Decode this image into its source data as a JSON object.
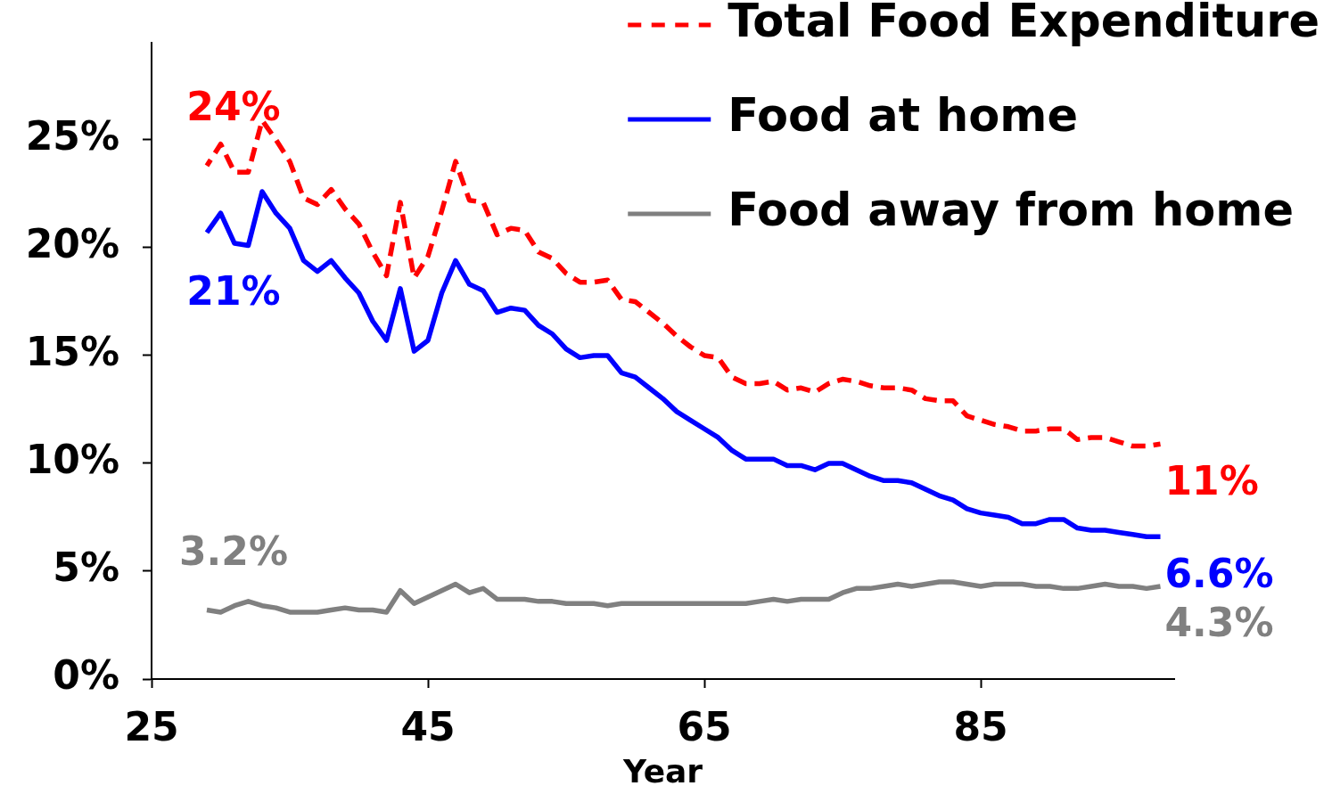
{
  "chart_data": {
    "type": "line",
    "xlabel": "Year",
    "x": [
      29,
      30,
      31,
      32,
      33,
      34,
      35,
      36,
      37,
      38,
      39,
      40,
      41,
      42,
      43,
      44,
      45,
      46,
      47,
      48,
      49,
      50,
      51,
      52,
      53,
      54,
      55,
      56,
      57,
      58,
      59,
      60,
      61,
      62,
      63,
      64,
      65,
      66,
      67,
      68,
      69,
      70,
      71,
      72,
      73,
      74,
      75,
      76,
      77,
      78,
      79,
      80,
      81,
      82,
      83,
      84,
      85,
      86,
      87,
      88,
      89,
      90,
      91,
      92,
      93,
      94,
      95,
      96,
      97,
      98
    ],
    "series": [
      {
        "name": "Total Food Expenditure",
        "color": "#ff0000",
        "line_style": "dashed",
        "values": [
          23.8,
          24.8,
          23.5,
          23.5,
          25.9,
          25.0,
          24.0,
          22.3,
          22.0,
          22.7,
          21.8,
          21.1,
          19.8,
          18.7,
          22.1,
          18.6,
          19.6,
          21.7,
          24.0,
          22.2,
          22.1,
          20.6,
          20.9,
          20.8,
          19.8,
          19.5,
          18.8,
          18.4,
          18.4,
          18.5,
          17.6,
          17.5,
          17.0,
          16.5,
          15.9,
          15.4,
          15.0,
          14.9,
          14.0,
          13.7,
          13.7,
          13.8,
          13.4,
          13.5,
          13.3,
          13.7,
          13.9,
          13.8,
          13.6,
          13.5,
          13.5,
          13.4,
          13.0,
          12.9,
          12.9,
          12.2,
          12.0,
          11.8,
          11.7,
          11.5,
          11.5,
          11.6,
          11.6,
          11.1,
          11.2,
          11.2,
          11.0,
          10.8,
          10.8,
          10.9
        ],
        "value_labels": [
          "24%",
          null,
          null,
          null,
          null,
          null,
          null,
          null,
          null,
          null,
          null,
          null,
          null,
          null,
          null,
          null,
          null,
          null,
          null,
          null,
          null,
          null,
          null,
          null,
          null,
          null,
          null,
          null,
          null,
          null,
          null,
          null,
          null,
          null,
          null,
          null,
          null,
          null,
          null,
          null,
          null,
          null,
          null,
          null,
          null,
          null,
          null,
          null,
          null,
          null,
          null,
          null,
          null,
          null,
          null,
          null,
          null,
          null,
          null,
          null,
          null,
          null,
          null,
          null,
          null,
          null,
          null,
          null,
          null,
          "11%"
        ]
      },
      {
        "name": "Food at home",
        "color": "#0000ff",
        "line_style": "solid",
        "values": [
          20.7,
          21.6,
          20.2,
          20.1,
          22.6,
          21.6,
          20.9,
          19.4,
          18.9,
          19.4,
          18.6,
          17.9,
          16.6,
          15.7,
          18.1,
          15.2,
          15.7,
          17.9,
          19.4,
          18.3,
          18.0,
          17.0,
          17.2,
          17.1,
          16.4,
          16.0,
          15.3,
          14.9,
          15.0,
          15.0,
          14.2,
          14.0,
          13.5,
          13.0,
          12.4,
          12.0,
          11.6,
          11.2,
          10.6,
          10.2,
          10.2,
          10.2,
          9.9,
          9.9,
          9.7,
          10.0,
          10.0,
          9.7,
          9.4,
          9.2,
          9.2,
          9.1,
          8.8,
          8.5,
          8.3,
          7.9,
          7.7,
          7.6,
          7.5,
          7.2,
          7.2,
          7.4,
          7.4,
          7.0,
          6.9,
          6.9,
          6.8,
          6.7,
          6.6,
          6.6
        ],
        "value_labels": [
          "21%",
          null,
          null,
          null,
          null,
          null,
          null,
          null,
          null,
          null,
          null,
          null,
          null,
          null,
          null,
          null,
          null,
          null,
          null,
          null,
          null,
          null,
          null,
          null,
          null,
          null,
          null,
          null,
          null,
          null,
          null,
          null,
          null,
          null,
          null,
          null,
          null,
          null,
          null,
          null,
          null,
          null,
          null,
          null,
          null,
          null,
          null,
          null,
          null,
          null,
          null,
          null,
          null,
          null,
          null,
          null,
          null,
          null,
          null,
          null,
          null,
          null,
          null,
          null,
          null,
          null,
          null,
          null,
          null,
          "6.6%"
        ]
      },
      {
        "name": "Food away from home",
        "color": "#808080",
        "line_style": "solid",
        "values": [
          3.2,
          3.1,
          3.4,
          3.6,
          3.4,
          3.3,
          3.1,
          3.1,
          3.1,
          3.2,
          3.3,
          3.2,
          3.2,
          3.1,
          4.1,
          3.5,
          3.8,
          4.1,
          4.4,
          4.0,
          4.2,
          3.7,
          3.7,
          3.7,
          3.6,
          3.6,
          3.5,
          3.5,
          3.5,
          3.4,
          3.5,
          3.5,
          3.5,
          3.5,
          3.5,
          3.5,
          3.5,
          3.5,
          3.5,
          3.5,
          3.6,
          3.7,
          3.6,
          3.7,
          3.7,
          3.7,
          4.0,
          4.2,
          4.2,
          4.3,
          4.4,
          4.3,
          4.4,
          4.5,
          4.5,
          4.4,
          4.3,
          4.4,
          4.4,
          4.4,
          4.3,
          4.3,
          4.2,
          4.2,
          4.3,
          4.4,
          4.3,
          4.3,
          4.2,
          4.3
        ],
        "value_labels": [
          "3.2%",
          null,
          null,
          null,
          null,
          null,
          null,
          null,
          null,
          null,
          null,
          null,
          null,
          null,
          null,
          null,
          null,
          null,
          null,
          null,
          null,
          null,
          null,
          null,
          null,
          null,
          null,
          null,
          null,
          null,
          null,
          null,
          null,
          null,
          null,
          null,
          null,
          null,
          null,
          null,
          null,
          null,
          null,
          null,
          null,
          null,
          null,
          null,
          null,
          null,
          null,
          null,
          null,
          null,
          null,
          null,
          null,
          null,
          null,
          null,
          null,
          null,
          null,
          null,
          null,
          null,
          null,
          null,
          null,
          "4.3%"
        ]
      }
    ],
    "xlim": [
      25,
      99
    ],
    "ylim": [
      0,
      29.5
    ],
    "xticks": [
      25,
      45,
      65,
      85
    ],
    "yticks": [
      {
        "value": 0,
        "label": "0%"
      },
      {
        "value": 5,
        "label": "5%"
      },
      {
        "value": 10,
        "label": "10%"
      },
      {
        "value": 15,
        "label": "15%"
      },
      {
        "value": 20,
        "label": "20%"
      },
      {
        "value": 25,
        "label": "25%"
      }
    ],
    "legend": "top right"
  }
}
